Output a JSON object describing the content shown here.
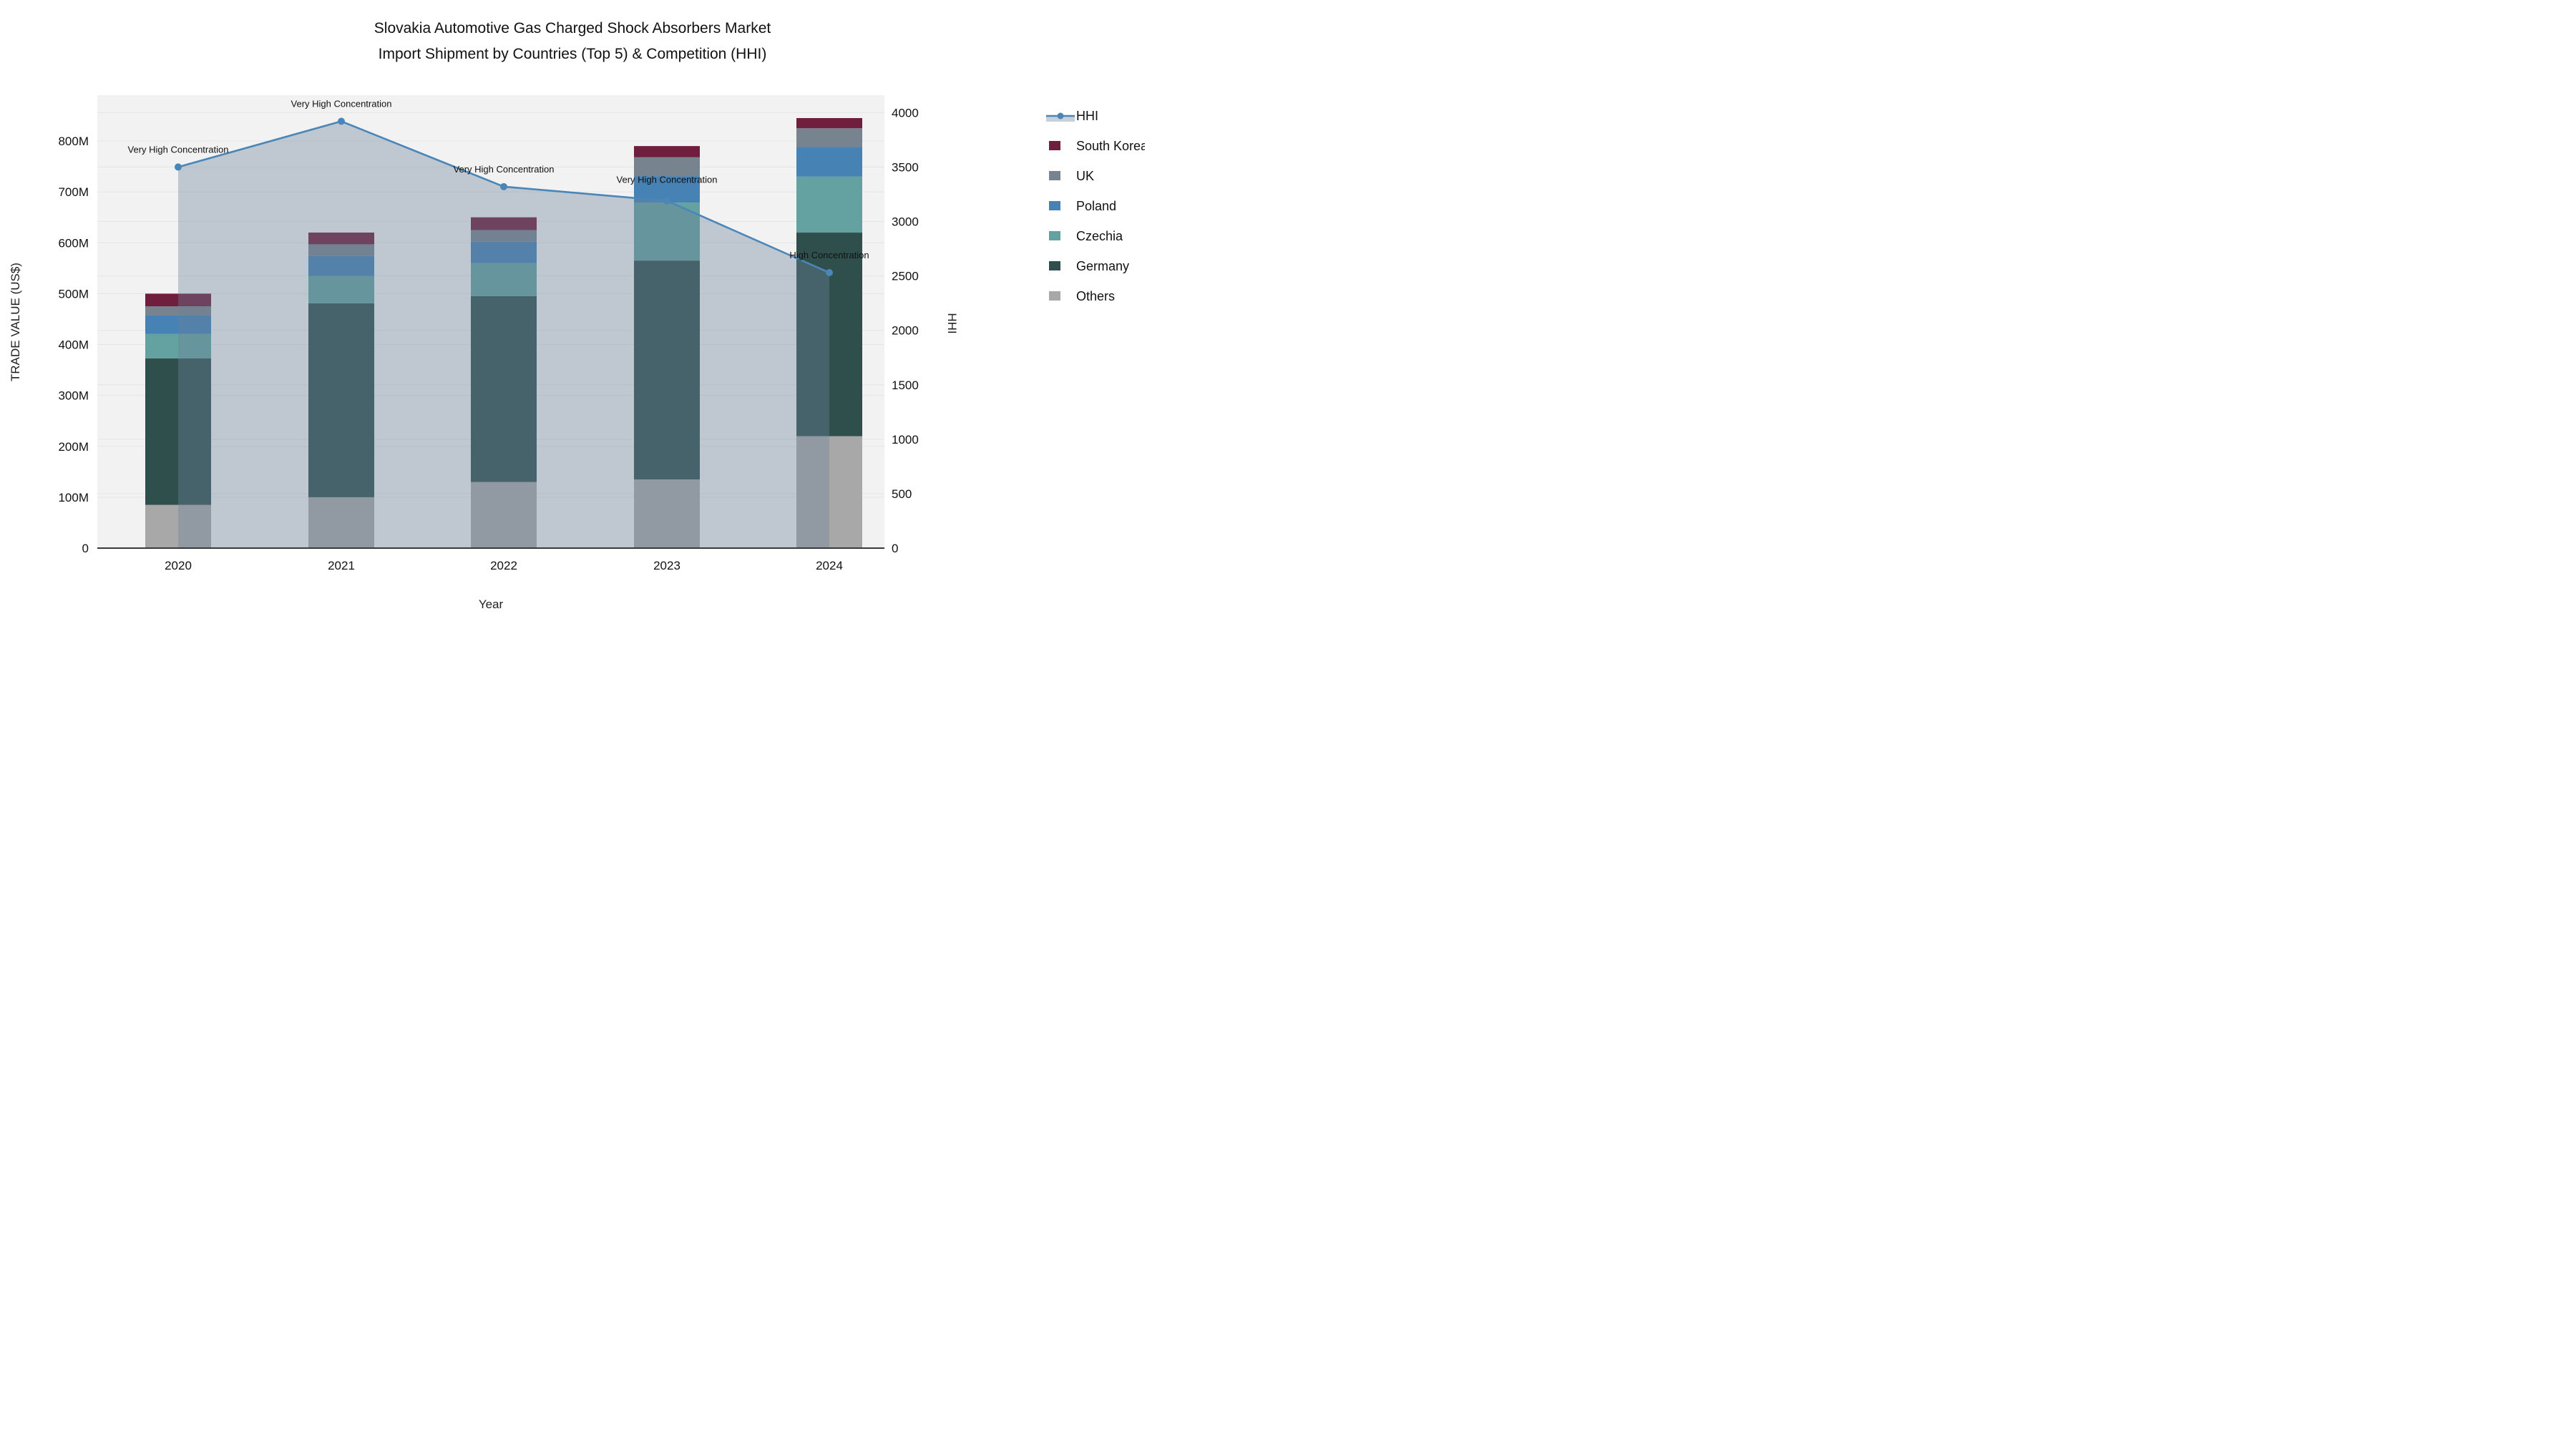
{
  "title": {
    "line1": "Slovakia Automotive Gas Charged Shock Absorbers Market",
    "line2": "Import Shipment by Countries (Top 5) & Competition (HHI)"
  },
  "axes": {
    "y_left_label": "TRADE VALUE (US$)",
    "y_right_label": "HHI",
    "x_label": "Year",
    "y_left_ticks": [
      "0",
      "100M",
      "200M",
      "300M",
      "400M",
      "500M",
      "600M",
      "700M",
      "800M"
    ],
    "y_right_ticks": [
      "0",
      "500",
      "1000",
      "1500",
      "2000",
      "2500",
      "3000",
      "3500",
      "4000"
    ]
  },
  "legend": {
    "items": [
      {
        "label": "HHI",
        "type": "line",
        "color": "#4a86b8"
      },
      {
        "label": "South Korea",
        "type": "box",
        "color": "#6f1e3d"
      },
      {
        "label": "UK",
        "type": "box",
        "color": "#77838f"
      },
      {
        "label": "Poland",
        "type": "box",
        "color": "#4682b4"
      },
      {
        "label": "Czechia",
        "type": "box",
        "color": "#63a2a1"
      },
      {
        "label": "Germany",
        "type": "box",
        "color": "#2f4f4c"
      },
      {
        "label": "Others",
        "type": "box",
        "color": "#a8a8a8"
      }
    ]
  },
  "chart_data": {
    "type": "bar+line",
    "title": "Slovakia Automotive Gas Charged Shock Absorbers Market Import Shipment by Countries (Top 5) & Competition (HHI)",
    "xlabel": "Year",
    "ylabel_left": "TRADE VALUE (US$)",
    "ylabel_right": "HHI",
    "categories": [
      "2020",
      "2021",
      "2022",
      "2023",
      "2024"
    ],
    "stack_order_bottom_to_top": [
      "Others",
      "Germany",
      "Czechia",
      "Poland",
      "UK",
      "South Korea"
    ],
    "series": [
      {
        "name": "Others",
        "color": "#a8a8a8",
        "values_musd": [
          85,
          100,
          130,
          135,
          220
        ]
      },
      {
        "name": "Germany",
        "color": "#2f4f4c",
        "values_musd": [
          288,
          381,
          365,
          430,
          400
        ]
      },
      {
        "name": "Czechia",
        "color": "#63a2a1",
        "values_musd": [
          48,
          54,
          65,
          114,
          110
        ]
      },
      {
        "name": "Poland",
        "color": "#4682b4",
        "values_musd": [
          36,
          39,
          42,
          52,
          58
        ]
      },
      {
        "name": "UK",
        "color": "#77838f",
        "values_musd": [
          18,
          23,
          23,
          37,
          37
        ]
      },
      {
        "name": "South Korea",
        "color": "#6f1e3d",
        "values_musd": [
          25,
          23,
          25,
          22,
          20
        ]
      }
    ],
    "bar_totals_musd": [
      500,
      620,
      650,
      790,
      845
    ],
    "line_series": {
      "name": "HHI",
      "color": "#4a86b8",
      "area_fill": "rgba(108,128,156,0.38)",
      "values": [
        3500,
        3920,
        3320,
        3190,
        2530
      ]
    },
    "annotations": [
      {
        "year": "2020",
        "text": "Very High Concentration"
      },
      {
        "year": "2021",
        "text": "Very High Concentration"
      },
      {
        "year": "2022",
        "text": "Very High Concentration"
      },
      {
        "year": "2023",
        "text": "Very High Concentration"
      },
      {
        "year": "2024",
        "text": "High Concentration"
      }
    ],
    "axis_ranges": {
      "y_left_musd": [
        0,
        890
      ],
      "y_right_hhi": [
        0,
        4160
      ]
    },
    "grid": true,
    "legend_position": "right",
    "colors": {
      "plot_bg": "#f2f2f2",
      "grid_line": "rgba(0,0,0,0.05)",
      "axis_line": "#3a3a3a",
      "text": "#111111"
    }
  }
}
